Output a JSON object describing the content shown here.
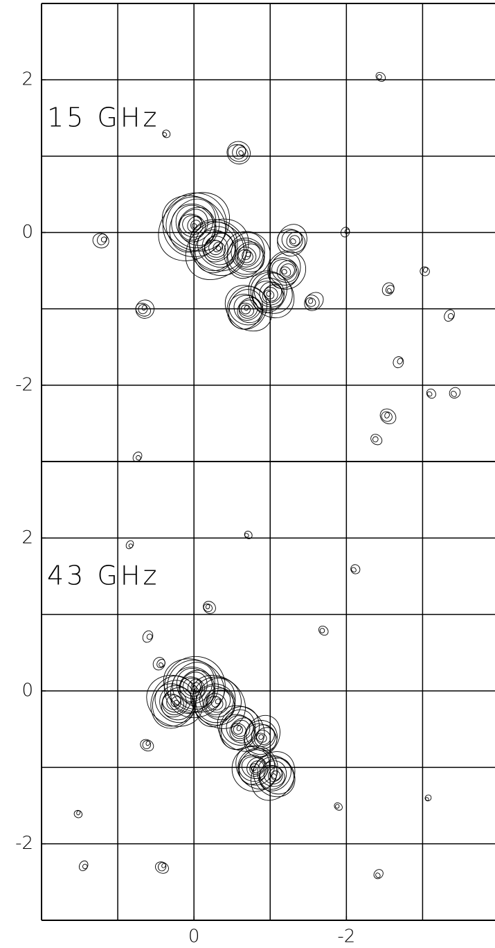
{
  "chart_data": [
    {
      "type": "contour",
      "label": "15 GHz",
      "color": "#000000",
      "xlim": [
        2,
        -3.95
      ],
      "ylim": [
        -3,
        3
      ],
      "yticks": [
        -2,
        0,
        2
      ],
      "grid": true,
      "x": [
        0,
        -0.3,
        -0.7,
        -0.7,
        -1.0,
        -1.2,
        -1.3,
        -0.6,
        1.2,
        0.65,
        -1.55,
        -2.45,
        0.38,
        -2.55,
        -3.35,
        -2.7,
        -2.55,
        -2.4,
        -3.1,
        -3.4,
        0.75,
        -2.0,
        -3.05
      ],
      "y": [
        0.1,
        -0.2,
        -0.3,
        -1.0,
        -0.8,
        -0.5,
        -0.1,
        1.05,
        -0.1,
        -1.0,
        -0.9,
        2.05,
        1.3,
        -0.75,
        -1.1,
        -1.7,
        -2.4,
        -2.7,
        -2.1,
        -2.1,
        -2.95,
        0.0,
        -0.5
      ],
      "size": [
        0.45,
        0.4,
        0.3,
        0.3,
        0.3,
        0.25,
        0.2,
        0.15,
        0.1,
        0.12,
        0.12,
        0.06,
        0.05,
        0.08,
        0.07,
        0.07,
        0.1,
        0.07,
        0.06,
        0.07,
        0.06,
        0.06,
        0.06
      ]
    },
    {
      "type": "contour",
      "label": "43 GHz",
      "color": "#000000",
      "xlim": [
        2,
        -3.95
      ],
      "ylim": [
        -3,
        3
      ],
      "xticks": [
        0,
        -2
      ],
      "yticks": [
        -2,
        0,
        2
      ],
      "grid": true,
      "x": [
        0,
        0.25,
        -0.3,
        -0.6,
        -0.9,
        -0.8,
        -1.05,
        0.45,
        0.6,
        0.6,
        -0.2,
        -1.7,
        -2.1,
        -2.4,
        1.45,
        0.4,
        1.5,
        -1.9,
        -0.7,
        -3.05,
        0.85
      ],
      "y": [
        0.05,
        -0.15,
        -0.15,
        -0.5,
        -0.6,
        -1.0,
        -1.1,
        0.35,
        0.7,
        -0.7,
        1.1,
        0.8,
        1.6,
        -2.4,
        -2.3,
        -2.3,
        -1.6,
        -1.5,
        2.05,
        -1.4,
        1.9
      ],
      "size": [
        0.4,
        0.35,
        0.35,
        0.3,
        0.25,
        0.3,
        0.3,
        0.08,
        0.07,
        0.08,
        0.08,
        0.06,
        0.06,
        0.06,
        0.06,
        0.08,
        0.05,
        0.05,
        0.05,
        0.04,
        0.05
      ]
    }
  ]
}
